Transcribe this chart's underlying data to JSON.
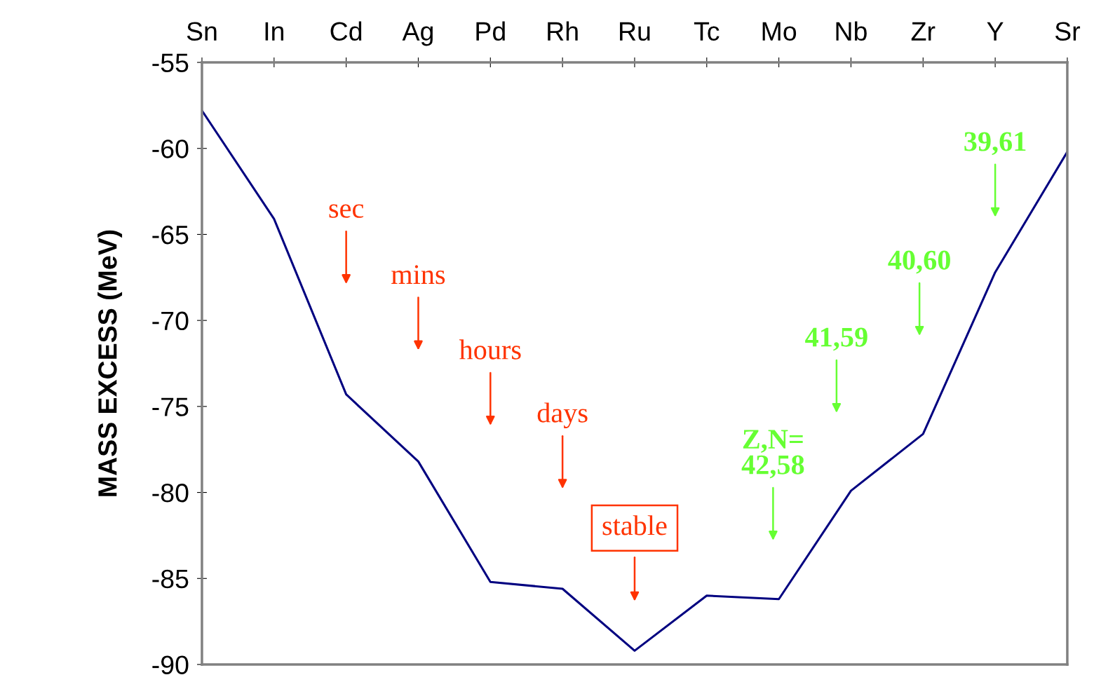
{
  "chart_data": {
    "type": "line",
    "ylabel": "MASS EXCESS (MeV)",
    "categories": [
      "Sn",
      "In",
      "Cd",
      "Ag",
      "Pd",
      "Rh",
      "Ru",
      "Tc",
      "Mo",
      "Nb",
      "Zr",
      "Y",
      "Sr"
    ],
    "series": [
      {
        "color": "#000080",
        "values": [
          -57.8,
          -64.1,
          -74.3,
          -78.2,
          -85.2,
          -85.6,
          -89.2,
          -86.0,
          -86.2,
          -79.9,
          -76.6,
          -67.2,
          -60.2
        ]
      }
    ],
    "ylim": [
      -90,
      -55
    ],
    "yticks": [
      -90,
      -85,
      -80,
      -75,
      -70,
      -65,
      -60,
      -55
    ],
    "grid": false,
    "legend": false,
    "marker": "none",
    "line_style": "solid",
    "annotations": [
      "sec",
      "mins",
      "hours",
      "days",
      "stable",
      "Z,N=\n42,58",
      "41,59",
      "40,60",
      "39,61"
    ]
  }
}
